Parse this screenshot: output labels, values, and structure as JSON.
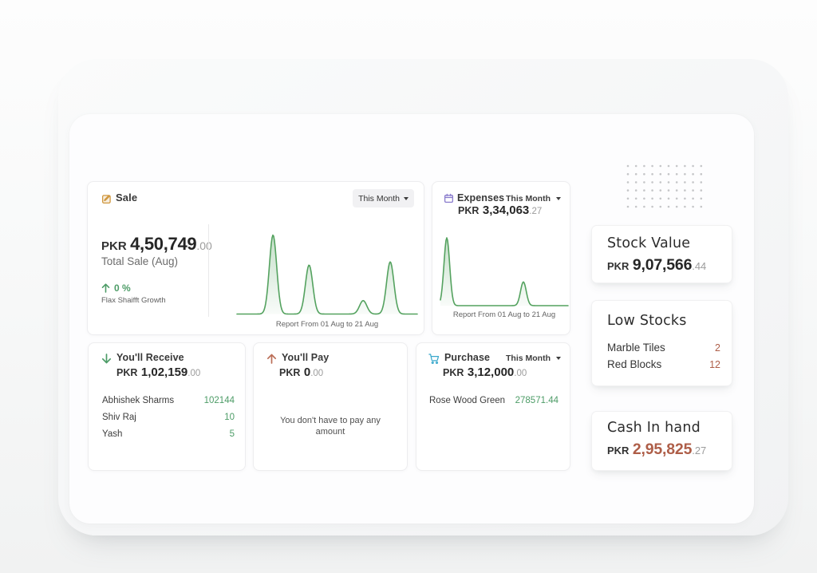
{
  "colors": {
    "green": "#4d9c67",
    "chart_green": "#54a25f",
    "rust": "#ae5e48",
    "amber": "#d0983f",
    "purple": "#8a7ccd",
    "blue": "#39a8cc",
    "faint": "#9c9c9c",
    "chip_bg": "#f1f1f3",
    "dot": "#c5c6c8"
  },
  "sale": {
    "title": "Sale",
    "period": "This Month",
    "currency": "PKR",
    "amount": "4,50,749",
    "decimals": ".00",
    "subtitle": "Total Sale (Aug)",
    "growth_value": "0 %",
    "growth_label": "Flax Shaifft Growth",
    "report_caption": "Report From 01 Aug to 21 Aug"
  },
  "expenses": {
    "title": "Expenses",
    "period": "This Month",
    "currency": "PKR",
    "amount": "3,34,063",
    "decimals": ".27",
    "report_caption": "Report From 01 Aug to 21 Aug"
  },
  "receive": {
    "title": "You'll Receive",
    "currency": "PKR",
    "amount": "1,02,159",
    "decimals": ".00",
    "rows": [
      {
        "name": "Abhishek Sharms",
        "value": "102144"
      },
      {
        "name": "Shiv Raj",
        "value": "10"
      },
      {
        "name": "Yash",
        "value": "5"
      }
    ]
  },
  "pay": {
    "title": "You'll Pay",
    "currency": "PKR",
    "amount": "0",
    "decimals": ".00",
    "empty_message": "You don't have to pay any amount"
  },
  "purchase": {
    "title": "Purchase",
    "period": "This Month",
    "currency": "PKR",
    "amount": "3,12,000",
    "decimals": ".00",
    "rows": [
      {
        "name": "Rose Wood Green",
        "value": "278571.44"
      }
    ]
  },
  "stock": {
    "title": "Stock Value",
    "currency": "PKR",
    "amount": "9,07,566",
    "decimals": ".44"
  },
  "low_stocks": {
    "title": "Low Stocks",
    "rows": [
      {
        "name": "Marble Tiles",
        "value": "2"
      },
      {
        "name": "Red Blocks",
        "value": "12"
      }
    ]
  },
  "cash": {
    "title": "Cash In hand",
    "currency": "PKR",
    "amount": "2,95,825",
    "decimals": ".27"
  },
  "dot_grid": {
    "cols": 10,
    "rows": 6,
    "gap": 10.2,
    "radius": 1.3
  },
  "chart_data": [
    {
      "type": "area",
      "title": "Sale daily sparkline (01 Aug to 21 Aug)",
      "x": [
        1,
        2,
        3,
        4,
        5,
        6,
        7,
        8,
        9,
        10,
        11,
        12,
        13,
        14,
        15,
        16,
        17,
        18,
        19,
        20,
        21
      ],
      "values": [
        0,
        0,
        0,
        0,
        100,
        0,
        0,
        0,
        62,
        0,
        0,
        0,
        0,
        0,
        17,
        0,
        0,
        66,
        0,
        0,
        0
      ],
      "ylim": [
        0,
        100
      ],
      "xlabel": "Report From 01 Aug to 21 Aug",
      "line_color": "#54a25f"
    },
    {
      "type": "area",
      "title": "Expenses daily sparkline (01 Aug to 21 Aug)",
      "x": [
        1,
        2,
        3,
        4,
        5,
        6,
        7,
        8,
        9,
        10,
        11,
        12,
        13,
        14,
        15,
        16,
        17,
        18,
        19,
        20,
        21
      ],
      "values": [
        0,
        100,
        0,
        0,
        0,
        0,
        0,
        0,
        0,
        0,
        0,
        0,
        0,
        35,
        0,
        0,
        0,
        0,
        0,
        0,
        0
      ],
      "ylim": [
        0,
        100
      ],
      "xlabel": "Report From 01 Aug to 21 Aug",
      "line_color": "#54a25f"
    }
  ]
}
